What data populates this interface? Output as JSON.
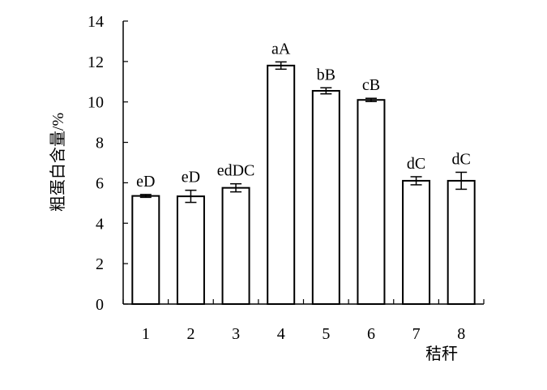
{
  "chart_data": {
    "type": "bar",
    "title": "",
    "xlabel": "秸秆",
    "ylabel": "粗蛋白含量/%",
    "categories": [
      "1",
      "2",
      "3",
      "4",
      "5",
      "6",
      "7",
      "8"
    ],
    "values": [
      5.35,
      5.33,
      5.75,
      11.8,
      10.55,
      10.1,
      6.1,
      6.1
    ],
    "errors": [
      0.07,
      0.3,
      0.2,
      0.18,
      0.15,
      0.08,
      0.2,
      0.42
    ],
    "labels": [
      "eD",
      "eD",
      "edDC",
      "aA",
      "bB",
      "cB",
      "dC",
      "dC"
    ],
    "ylim": [
      0,
      14
    ],
    "yticks": [
      0,
      2,
      4,
      6,
      8,
      10,
      12,
      14
    ],
    "grid": false,
    "bar_fill": "#ffffff",
    "bar_stroke": "#000000"
  }
}
